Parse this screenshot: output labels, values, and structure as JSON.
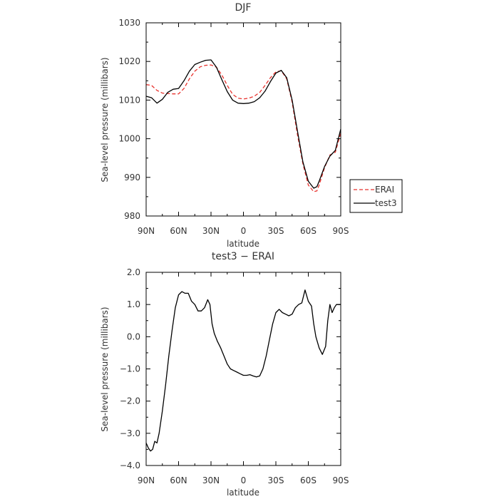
{
  "chart_data": [
    {
      "type": "line",
      "title": "DJF",
      "xlabel": "latitude",
      "ylabel": "Sea-level pressure (millibars)",
      "xlim": [
        90,
        -90
      ],
      "ylim": [
        980,
        1030
      ],
      "xticks": [
        90,
        60,
        30,
        0,
        -30,
        -60,
        -90
      ],
      "xticklabels": [
        "90N",
        "60N",
        "30N",
        "0",
        "30S",
        "60S",
        "90S"
      ],
      "yticks": [
        980,
        990,
        1000,
        1010,
        1020,
        1030
      ],
      "yticklabels": [
        "980",
        "990",
        "1000",
        "1010",
        "1020",
        "1030"
      ],
      "grid": false,
      "legend": "right",
      "series": [
        {
          "name": "ERAI",
          "color": "#e8322d",
          "dash": true,
          "x": [
            90,
            85,
            80,
            75,
            70,
            65,
            60,
            55,
            50,
            45,
            40,
            35,
            30,
            25,
            20,
            15,
            10,
            5,
            0,
            -5,
            -10,
            -15,
            -20,
            -25,
            -30,
            -35,
            -40,
            -45,
            -50,
            -55,
            -60,
            -65,
            -68,
            -70,
            -75,
            -80,
            -85,
            -90
          ],
          "y": [
            1014.0,
            1013.8,
            1012.5,
            1011.8,
            1011.7,
            1011.6,
            1011.6,
            1013.0,
            1015.5,
            1017.5,
            1018.6,
            1019.0,
            1019.1,
            1018.5,
            1016.5,
            1013.8,
            1011.5,
            1010.5,
            1010.3,
            1010.5,
            1011.0,
            1012.0,
            1013.8,
            1015.8,
            1017.3,
            1017.6,
            1015.5,
            1009.5,
            1001.0,
            993.5,
            988.0,
            986.3,
            986.5,
            988.0,
            992.5,
            995.8,
            996.5,
            1001.5
          ]
        },
        {
          "name": "test3",
          "color": "#000000",
          "dash": false,
          "x": [
            90,
            85,
            80,
            75,
            70,
            65,
            60,
            55,
            50,
            45,
            40,
            35,
            30,
            25,
            20,
            15,
            10,
            5,
            0,
            -5,
            -10,
            -15,
            -20,
            -25,
            -30,
            -35,
            -40,
            -45,
            -50,
            -55,
            -60,
            -65,
            -68,
            -70,
            -75,
            -80,
            -85,
            -90
          ],
          "y": [
            1011.0,
            1010.6,
            1009.2,
            1010.2,
            1012.0,
            1012.8,
            1013.0,
            1015.0,
            1017.5,
            1019.2,
            1019.8,
            1020.3,
            1020.4,
            1018.5,
            1015.3,
            1012.2,
            1010.0,
            1009.2,
            1009.1,
            1009.2,
            1009.6,
            1010.6,
            1012.3,
            1014.8,
            1017.0,
            1017.7,
            1015.8,
            1010.0,
            1002.0,
            994.0,
            989.0,
            987.2,
            987.6,
            989.0,
            992.8,
            995.5,
            997.0,
            1002.5
          ]
        }
      ]
    },
    {
      "type": "line",
      "title": "test3 − ERAI",
      "xlabel": "latitude",
      "ylabel": "Sea-level pressure (millibars)",
      "xlim": [
        90,
        -90
      ],
      "ylim": [
        -4.0,
        2.0
      ],
      "xticks": [
        90,
        60,
        30,
        0,
        -30,
        -60,
        -90
      ],
      "xticklabels": [
        "90N",
        "60N",
        "30N",
        "0",
        "30S",
        "60S",
        "90S"
      ],
      "yticks": [
        -4,
        -3,
        -2,
        -1,
        0,
        1,
        2
      ],
      "yticklabels": [
        "−4.0",
        "−3.0",
        "−2.0",
        "−1.0",
        "0.0",
        "1.0",
        "2.0"
      ],
      "grid": false,
      "series": [
        {
          "color": "#000000",
          "dash": false,
          "x": [
            90,
            88,
            86,
            84,
            82,
            80,
            78,
            75,
            72,
            69,
            66,
            63,
            60,
            57,
            54,
            51,
            48,
            45,
            42,
            39,
            36,
            33,
            31,
            29,
            27,
            24,
            21,
            18,
            15,
            12,
            9,
            6,
            3,
            0,
            -3,
            -6,
            -9,
            -12,
            -15,
            -18,
            -21,
            -24,
            -27,
            -30,
            -33,
            -36,
            -39,
            -42,
            -45,
            -48,
            -51,
            -54,
            -57,
            -60,
            -63,
            -65,
            -67,
            -70,
            -73,
            -76,
            -78,
            -80,
            -82,
            -84,
            -86,
            -88,
            -90
          ],
          "y": [
            -3.3,
            -3.45,
            -3.55,
            -3.5,
            -3.25,
            -3.3,
            -3.0,
            -2.3,
            -1.5,
            -0.6,
            0.2,
            0.9,
            1.3,
            1.4,
            1.35,
            1.35,
            1.1,
            1.0,
            0.8,
            0.8,
            0.9,
            1.15,
            1.0,
            0.4,
            0.1,
            -0.15,
            -0.35,
            -0.6,
            -0.85,
            -1.0,
            -1.05,
            -1.1,
            -1.15,
            -1.2,
            -1.2,
            -1.18,
            -1.22,
            -1.25,
            -1.22,
            -1.0,
            -0.6,
            -0.1,
            0.4,
            0.75,
            0.85,
            0.75,
            0.7,
            0.65,
            0.7,
            0.9,
            1.0,
            1.05,
            1.45,
            1.1,
            0.95,
            0.4,
            0.0,
            -0.35,
            -0.55,
            -0.3,
            0.5,
            1.0,
            0.75,
            0.9,
            1.0,
            1.0,
            1.0
          ]
        }
      ]
    }
  ]
}
